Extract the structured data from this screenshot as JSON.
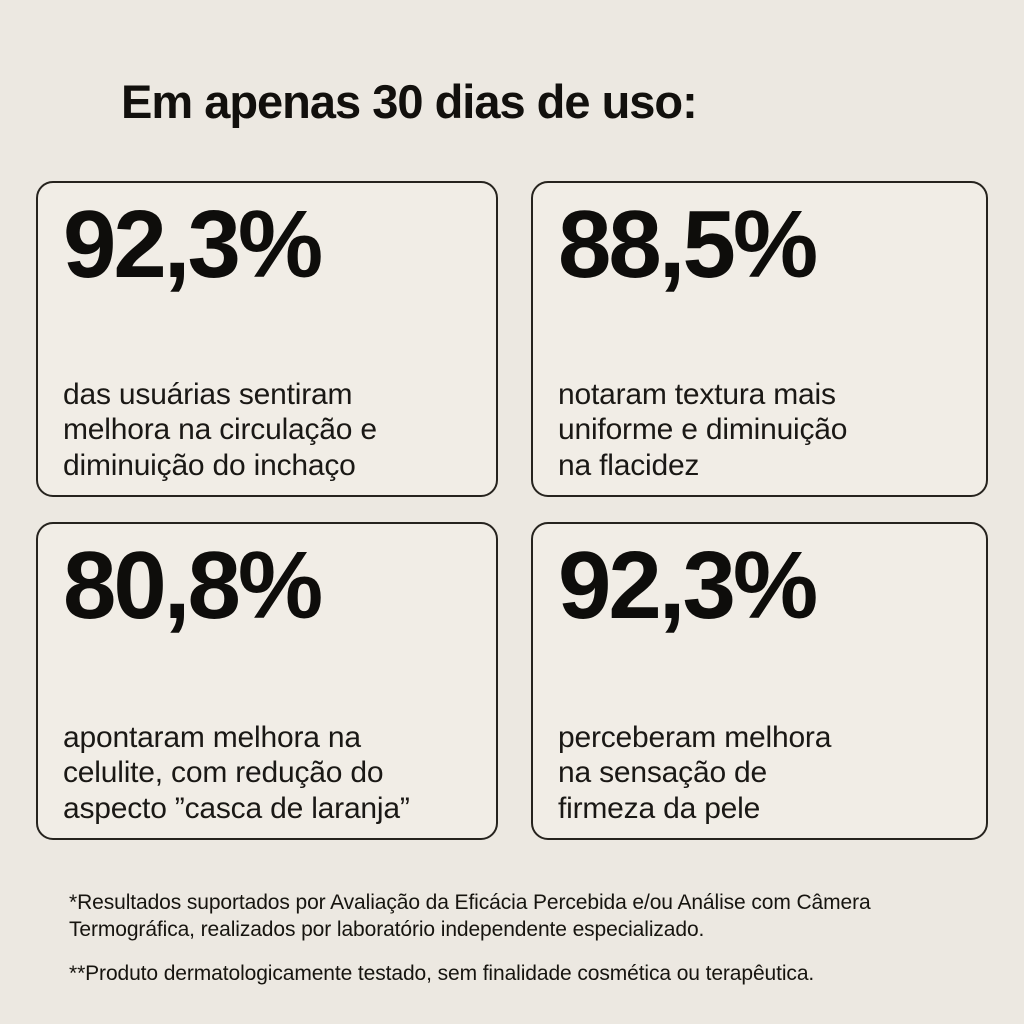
{
  "page": {
    "title": "Em apenas 30 dias de uso:",
    "background_color": "#ECE8E1",
    "card_background_color": "#F1EDE6",
    "card_border_color": "#26231E",
    "text_color": "#12100D"
  },
  "stats": [
    {
      "value": "92,3%",
      "description": "das usuárias sentiram\nmelhora na circulação e\ndiminuição do inchaço"
    },
    {
      "value": "88,5%",
      "description": "notaram textura mais\nuniforme e diminuição\nna flacidez"
    },
    {
      "value": "80,8%",
      "description": "apontaram melhora na\ncelulite, com redução do\naspecto ”casca de laranja”"
    },
    {
      "value": "92,3%",
      "description": "perceberam melhora\nna sensação de\nfirmeza da pele"
    }
  ],
  "footnotes": [
    "*Resultados suportados por Avaliação da Eficácia Percebida e/ou Análise com Câmera\nTermográfica, realizados por laboratório independente especializado.",
    "**Produto dermatologicamente testado, sem finalidade cosmética ou terapêutica."
  ]
}
